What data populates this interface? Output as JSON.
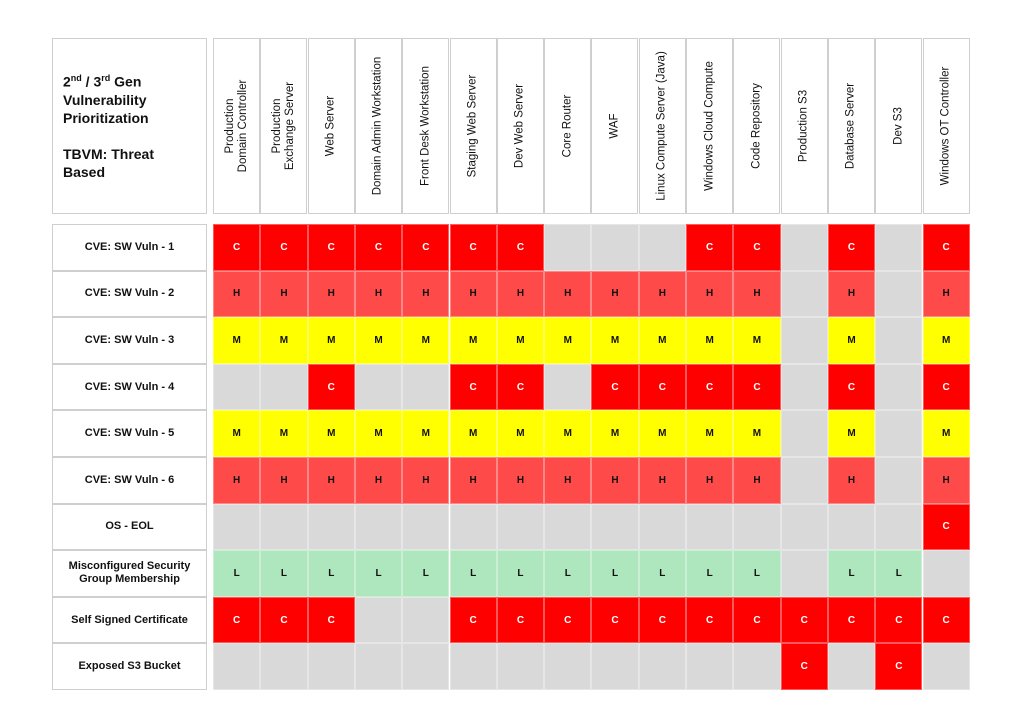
{
  "title": {
    "line1_pre": "2",
    "line1_sup1": "nd",
    "line1_mid": " / 3",
    "line1_sup2": "rd",
    "line1_post": " Gen",
    "line2": "Vulnerability",
    "line3": "Prioritization",
    "subtitle_1": "TBVM: Threat",
    "subtitle_2": "Based"
  },
  "colors": {
    "C": "#ff0000",
    "H": "#ff4a4a",
    "M": "#ffff00",
    "L": "#aee6be",
    "empty": "#d9d9d9"
  },
  "columns": [
    "Production\nDomain Controller",
    "Production\nExchange Server",
    "Web Server",
    "Domain Admin Workstation",
    "Front Desk Workstation",
    "Staging Web Server",
    "Dev Web Server",
    "Core Router",
    "WAF",
    "Linux Compute Server (Java)",
    "Windows Cloud Compute",
    "Code Repository",
    "Production S3",
    "Database Server",
    "Dev S3",
    "Windows OT Controller"
  ],
  "rows": [
    {
      "label": "CVE: SW Vuln - 1",
      "cells": [
        "C",
        "C",
        "C",
        "C",
        "C",
        "C",
        "C",
        "",
        "",
        "",
        "C",
        "C",
        "",
        "C",
        "",
        "C"
      ]
    },
    {
      "label": "CVE: SW Vuln - 2",
      "cells": [
        "H",
        "H",
        "H",
        "H",
        "H",
        "H",
        "H",
        "H",
        "H",
        "H",
        "H",
        "H",
        "",
        "H",
        "",
        "H"
      ]
    },
    {
      "label": "CVE: SW Vuln - 3",
      "cells": [
        "M",
        "M",
        "M",
        "M",
        "M",
        "M",
        "M",
        "M",
        "M",
        "M",
        "M",
        "M",
        "",
        "M",
        "",
        "M"
      ]
    },
    {
      "label": "CVE: SW Vuln - 4",
      "cells": [
        "",
        "",
        "C",
        "",
        "",
        "C",
        "C",
        "",
        "C",
        "C",
        "C",
        "C",
        "",
        "C",
        "",
        "C"
      ]
    },
    {
      "label": "CVE: SW Vuln - 5",
      "cells": [
        "M",
        "M",
        "M",
        "M",
        "M",
        "M",
        "M",
        "M",
        "M",
        "M",
        "M",
        "M",
        "",
        "M",
        "",
        "M"
      ]
    },
    {
      "label": "CVE: SW Vuln - 6",
      "cells": [
        "H",
        "H",
        "H",
        "H",
        "H",
        "H",
        "H",
        "H",
        "H",
        "H",
        "H",
        "H",
        "",
        "H",
        "",
        "H"
      ]
    },
    {
      "label": "OS - EOL",
      "cells": [
        "",
        "",
        "",
        "",
        "",
        "",
        "",
        "",
        "",
        "",
        "",
        "",
        "",
        "",
        "",
        "C"
      ]
    },
    {
      "label": "Misconfigured Security Group Membership",
      "cells": [
        "L",
        "L",
        "L",
        "L",
        "L",
        "L",
        "L",
        "L",
        "L",
        "L",
        "L",
        "L",
        "",
        "L",
        "L",
        ""
      ]
    },
    {
      "label": "Self Signed Certificate",
      "cells": [
        "C",
        "C",
        "C",
        "",
        "",
        "C",
        "C",
        "C",
        "C",
        "C",
        "C",
        "C",
        "C",
        "C",
        "C",
        "C"
      ]
    },
    {
      "label": "Exposed S3 Bucket",
      "cells": [
        "",
        "",
        "",
        "",
        "",
        "",
        "",
        "",
        "",
        "",
        "",
        "",
        "C",
        "",
        "C",
        ""
      ]
    }
  ]
}
